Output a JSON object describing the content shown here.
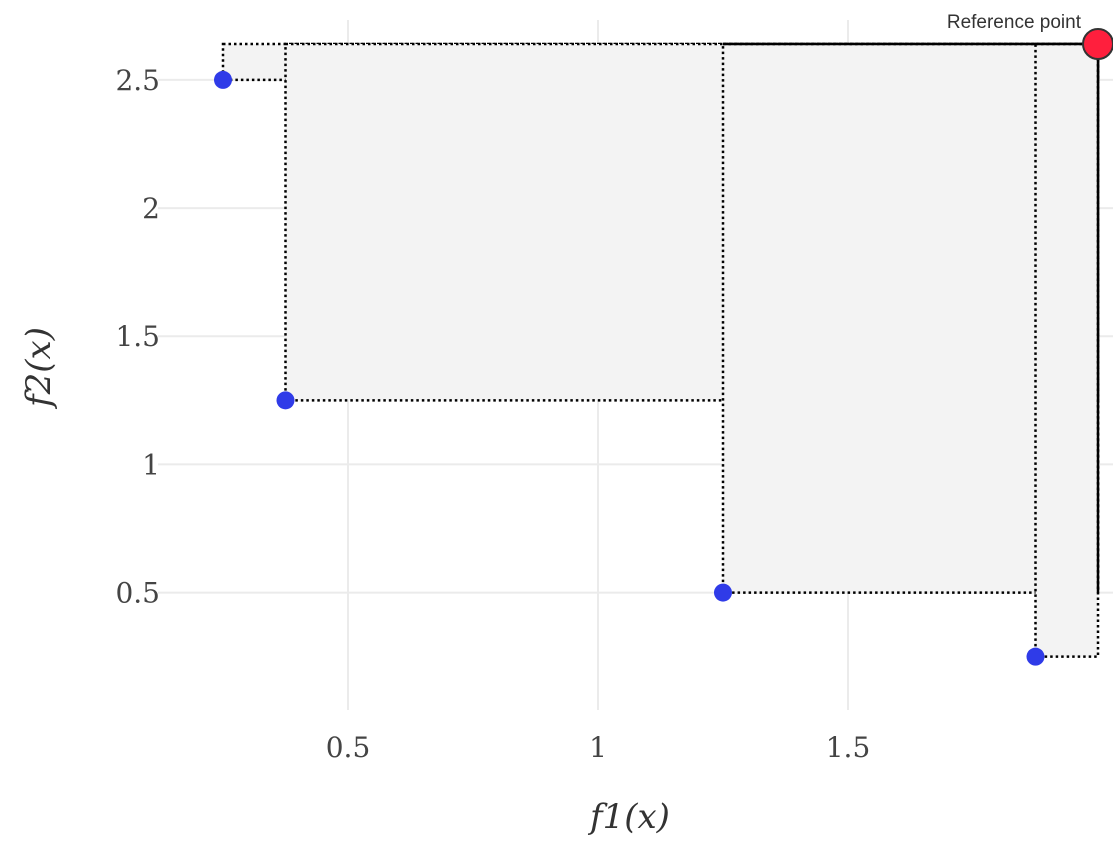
{
  "chart_data": {
    "type": "scatter",
    "title": "",
    "xlabel": "f1(x)",
    "ylabel": "f2(x)",
    "xlim": [
      -0.0,
      2.0
    ],
    "ylim": [
      0.12,
      2.64
    ],
    "x_ticks": [
      0.5,
      1,
      1.5
    ],
    "x_tick_labels": [
      "0.5",
      "1",
      "1.5"
    ],
    "y_ticks": [
      0.5,
      1,
      1.5,
      2,
      2.5
    ],
    "y_tick_labels": [
      "0.5",
      "1",
      "1.5",
      "2",
      "2.5"
    ],
    "grid": true,
    "points": [
      {
        "x": 0.25,
        "y": 2.5
      },
      {
        "x": 0.375,
        "y": 1.25
      },
      {
        "x": 1.25,
        "y": 0.5
      },
      {
        "x": 1.875,
        "y": 0.25
      }
    ],
    "reference_point": {
      "x": 2.0,
      "y": 2.64,
      "label": "Reference point"
    },
    "colors": {
      "points": "#2f3be8",
      "reference": "#ff1f3d",
      "dominated_fill": "#f3f3f3",
      "box_stroke": "#000000",
      "grid": "#ebebeb"
    }
  }
}
